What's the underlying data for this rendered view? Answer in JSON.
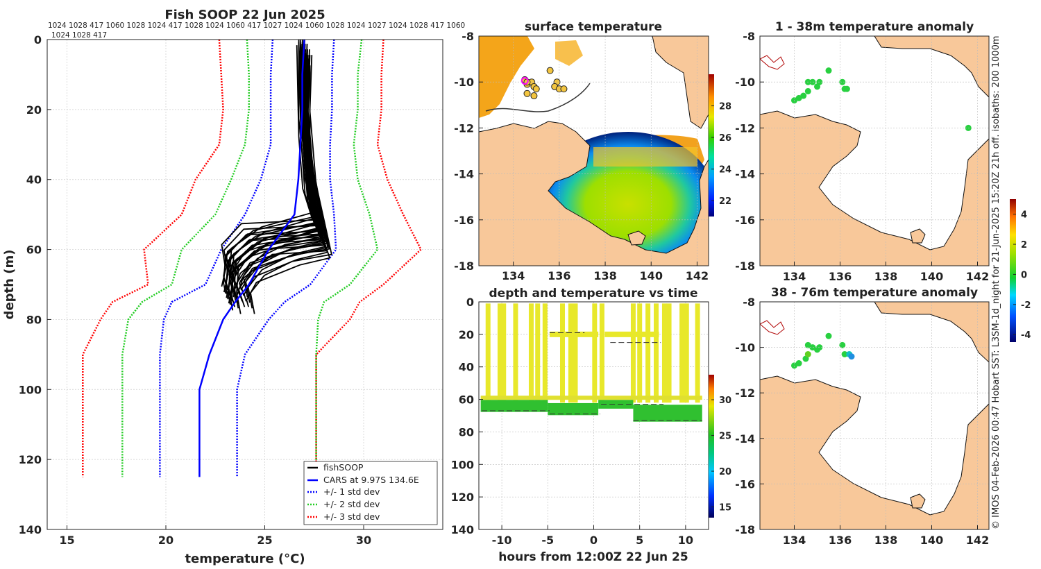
{
  "chart_data": [
    {
      "type": "line",
      "title": "Fish SOOP 22 Jun 2025",
      "xlabel": "temperature (°C)",
      "ylabel": "depth (m)",
      "xlim": [
        14,
        34
      ],
      "ylim": [
        140,
        0
      ],
      "xticks": [
        "15",
        "20",
        "25",
        "30"
      ],
      "yticks": [
        "0",
        "20",
        "40",
        "60",
        "80",
        "100",
        "120",
        "140"
      ],
      "top_labels_row1": "1024 1028 417 1060 1028 1024 417 1028 1024 1060 417 1027 1024 1060 1028 1024 1027 1024 1028 417 1060",
      "top_labels_row2": "1024 1028 417",
      "legend": [
        "fishSOOP",
        "CARS at 9.97S 134.6E",
        "+/- 1 std dev",
        "+/- 2 std dev",
        "+/- 3 std dev"
      ],
      "depths": [
        0,
        10,
        20,
        30,
        40,
        50,
        60,
        70,
        75,
        80,
        90,
        100,
        125
      ],
      "cars_mean": [
        27.0,
        26.9,
        26.9,
        26.8,
        26.7,
        26.5,
        25.2,
        24.2,
        23.5,
        22.9,
        22.2,
        21.7,
        21.7
      ],
      "std1_low": [
        25.4,
        25.3,
        25.3,
        25.3,
        24.8,
        24.0,
        22.8,
        22.0,
        20.3,
        19.9,
        19.7,
        19.7,
        19.7
      ],
      "std1_high": [
        28.5,
        28.4,
        28.4,
        28.3,
        28.3,
        28.5,
        28.6,
        27.3,
        26.0,
        25.2,
        24.0,
        23.6,
        23.6
      ],
      "std2_low": [
        24.1,
        24.2,
        24.2,
        24.0,
        23.3,
        22.5,
        20.8,
        20.3,
        18.8,
        18.1,
        17.8,
        17.8,
        17.8
      ],
      "std2_high": [
        29.9,
        29.7,
        29.7,
        29.5,
        29.7,
        30.3,
        30.7,
        29.3,
        28.0,
        27.7,
        27.6,
        27.6,
        27.6
      ],
      "std3_low": [
        22.7,
        22.8,
        22.9,
        22.7,
        21.5,
        20.8,
        18.9,
        19.1,
        17.3,
        16.7,
        15.8,
        15.8,
        15.8
      ],
      "std3_high": [
        31.0,
        30.9,
        30.9,
        30.7,
        31.2,
        32.0,
        32.9,
        31.0,
        29.8,
        29.3,
        27.6,
        27.6,
        27.6
      ],
      "soop_profiles": [
        [
          [
            27.1,
            2
          ],
          [
            27.0,
            20
          ],
          [
            27.3,
            40
          ],
          [
            27.5,
            52
          ],
          [
            25.0,
            56
          ],
          [
            23.5,
            62
          ],
          [
            23.4,
            70
          ],
          [
            23.6,
            76
          ]
        ],
        [
          [
            26.9,
            3
          ],
          [
            26.9,
            25
          ],
          [
            27.2,
            42
          ],
          [
            27.8,
            55
          ],
          [
            24.3,
            58
          ],
          [
            23.2,
            64
          ],
          [
            23.1,
            72
          ],
          [
            23.2,
            75
          ]
        ],
        [
          [
            27.2,
            2
          ],
          [
            27.1,
            18
          ],
          [
            27.4,
            38
          ],
          [
            28.0,
            57
          ],
          [
            25.8,
            60
          ],
          [
            24.2,
            63
          ],
          [
            23.5,
            69
          ],
          [
            23.8,
            74
          ]
        ],
        [
          [
            26.8,
            4
          ],
          [
            26.9,
            30
          ],
          [
            27.1,
            45
          ],
          [
            27.6,
            54
          ],
          [
            24.0,
            55
          ],
          [
            23.0,
            61
          ],
          [
            23.2,
            68
          ],
          [
            23.0,
            73
          ]
        ],
        [
          [
            27.0,
            3
          ],
          [
            27.0,
            22
          ],
          [
            27.3,
            36
          ],
          [
            28.2,
            59
          ],
          [
            26.2,
            61
          ],
          [
            24.8,
            65
          ],
          [
            24.1,
            70
          ],
          [
            24.3,
            76
          ]
        ],
        [
          [
            26.9,
            2
          ],
          [
            27.0,
            28
          ],
          [
            27.5,
            46
          ],
          [
            27.9,
            58
          ],
          [
            25.2,
            59
          ],
          [
            23.7,
            66
          ],
          [
            23.4,
            71
          ],
          [
            23.5,
            73
          ]
        ],
        [
          [
            27.1,
            5
          ],
          [
            27.1,
            32
          ],
          [
            27.4,
            48
          ],
          [
            28.1,
            60
          ],
          [
            26.6,
            62
          ],
          [
            24.4,
            67
          ],
          [
            23.9,
            72
          ],
          [
            24.0,
            74
          ]
        ],
        [
          [
            27.0,
            2
          ],
          [
            26.9,
            15
          ],
          [
            27.2,
            39
          ],
          [
            27.7,
            53
          ],
          [
            24.6,
            57
          ],
          [
            23.3,
            63
          ],
          [
            23.1,
            70
          ],
          [
            23.3,
            74
          ]
        ]
      ]
    },
    {
      "type": "heatmap",
      "title": "surface temperature",
      "xlim": [
        132.5,
        142.5
      ],
      "ylim": [
        -18,
        -8
      ],
      "xticks": [
        "134",
        "136",
        "138",
        "140",
        "142"
      ],
      "yticks": [
        "-8",
        "-10",
        "-12",
        "-14",
        "-16",
        "-18"
      ],
      "colorbar_ticks": [
        "22",
        "24",
        "26",
        "28"
      ],
      "colorbar_range": [
        21,
        30
      ],
      "stations": [
        [
          134.5,
          -9.9
        ],
        [
          134.6,
          -10.1
        ],
        [
          134.8,
          -10.0
        ],
        [
          134.9,
          -10.2
        ],
        [
          134.6,
          -10.5
        ],
        [
          134.9,
          -10.6
        ],
        [
          135.0,
          -10.3
        ],
        [
          135.6,
          -9.5
        ],
        [
          135.9,
          -10.0
        ],
        [
          135.8,
          -10.2
        ],
        [
          136.0,
          -10.3
        ],
        [
          136.2,
          -10.3
        ],
        [
          134.6,
          -10.0
        ]
      ],
      "stations_highlight": [
        134.5,
        -9.95
      ]
    },
    {
      "type": "scatter",
      "title": "depth and temperature vs time",
      "xlabel": "hours from 12:00Z 22 Jun 25",
      "xlim": [
        -12.5,
        12.5
      ],
      "ylim": [
        140,
        0
      ],
      "xticks": [
        "-10",
        "-5",
        "0",
        "5",
        "10"
      ],
      "yticks": [
        "0",
        "20",
        "40",
        "60",
        "80",
        "100",
        "120",
        "140"
      ],
      "colorbar_ticks": [
        "15",
        "20",
        "25",
        "30"
      ],
      "colorbar_range": [
        13.5,
        33.5
      ],
      "dives_hours": [
        -11.5,
        -10.2,
        -9.8,
        -8.5,
        -6.8,
        -6.1,
        -5.3,
        -3.4,
        -2.5,
        -2.0,
        0.1,
        0.9,
        4.3,
        5.0,
        5.9,
        6.8,
        7.7,
        8.2,
        9.6,
        10.1,
        11.3
      ],
      "bottom_segments": [
        [
          -12.3,
          -5,
          62,
          66
        ],
        [
          -5,
          0.5,
          64,
          68
        ],
        [
          0.5,
          4.3,
          62,
          64
        ],
        [
          4.3,
          11.8,
          65,
          72
        ]
      ],
      "mid_segments": [
        [
          -4.8,
          0.5,
          20
        ],
        [
          1.2,
          7.1,
          20
        ]
      ],
      "dashes": [
        [
          -12.2,
          -4.8,
          67
        ],
        [
          -4.8,
          -1,
          19
        ],
        [
          -4.8,
          0.7,
          69
        ],
        [
          1.8,
          7.3,
          25
        ],
        [
          0.8,
          7.6,
          63
        ],
        [
          4.3,
          11.8,
          73
        ]
      ]
    },
    {
      "type": "scatter",
      "title": "1 - 38m temperature anomaly",
      "xlim": [
        132.5,
        142.5
      ],
      "ylim": [
        -18,
        -8
      ],
      "xticks": [
        "134",
        "136",
        "138",
        "140",
        "142"
      ],
      "yticks": [
        "-8",
        "-10",
        "-12",
        "-14",
        "-16",
        "-18"
      ],
      "colorbar_ticks": [
        "-4",
        "-2",
        "0",
        "2",
        "4"
      ],
      "colorbar_range": [
        -4.5,
        5
      ],
      "points": [
        [
          134.0,
          -10.8,
          0.5
        ],
        [
          134.2,
          -10.7,
          0.5
        ],
        [
          134.4,
          -10.6,
          0.4
        ],
        [
          134.6,
          -10.4,
          0.5
        ],
        [
          134.6,
          -10.0,
          0.5
        ],
        [
          134.8,
          -10.0,
          0.5
        ],
        [
          135.0,
          -10.2,
          0.6
        ],
        [
          135.1,
          -10.0,
          0.5
        ],
        [
          135.5,
          -9.5,
          0.6
        ],
        [
          136.1,
          -10.0,
          0.5
        ],
        [
          136.2,
          -10.3,
          0.5
        ],
        [
          136.3,
          -10.3,
          0.4
        ],
        [
          141.6,
          -12.0,
          0.6
        ]
      ]
    },
    {
      "type": "scatter",
      "title": "38 - 76m temperature anomaly",
      "xlim": [
        132.5,
        142.5
      ],
      "ylim": [
        -18,
        -8
      ],
      "xticks": [
        "134",
        "136",
        "138",
        "140",
        "142"
      ],
      "yticks": [
        "-8",
        "-10",
        "-12",
        "-14",
        "-16",
        "-18"
      ],
      "colorbar_ticks": [
        "-4",
        "-2",
        "0",
        "2",
        "4"
      ],
      "colorbar_range": [
        -4.5,
        5
      ],
      "points": [
        [
          134.0,
          -10.8,
          0.4
        ],
        [
          134.2,
          -10.7,
          0.5
        ],
        [
          134.5,
          -10.5,
          0.4
        ],
        [
          134.6,
          -10.3,
          0.8
        ],
        [
          134.6,
          -9.9,
          0.5
        ],
        [
          134.8,
          -10.0,
          0.5
        ],
        [
          135.0,
          -10.1,
          0.6
        ],
        [
          135.1,
          -10.0,
          0.5
        ],
        [
          135.5,
          -9.5,
          0.6
        ],
        [
          136.1,
          -9.9,
          0.5
        ],
        [
          136.2,
          -10.3,
          0.3
        ],
        [
          136.4,
          -10.3,
          -1.2
        ],
        [
          136.5,
          -10.4,
          -1.8
        ]
      ]
    }
  ],
  "side_note": "© IMOS 04-Feb-2026 00:47 Hobart SST: L3SM-1d_night for 21-Jun-2025 15:20Z 21h off. isobaths: 200  1000m",
  "colors": {
    "land": "#f8c89a",
    "profile": "#000000",
    "cars": "#0000ff",
    "std1": "#0000ff",
    "std2": "#22cc22",
    "std3": "#ff0000"
  }
}
